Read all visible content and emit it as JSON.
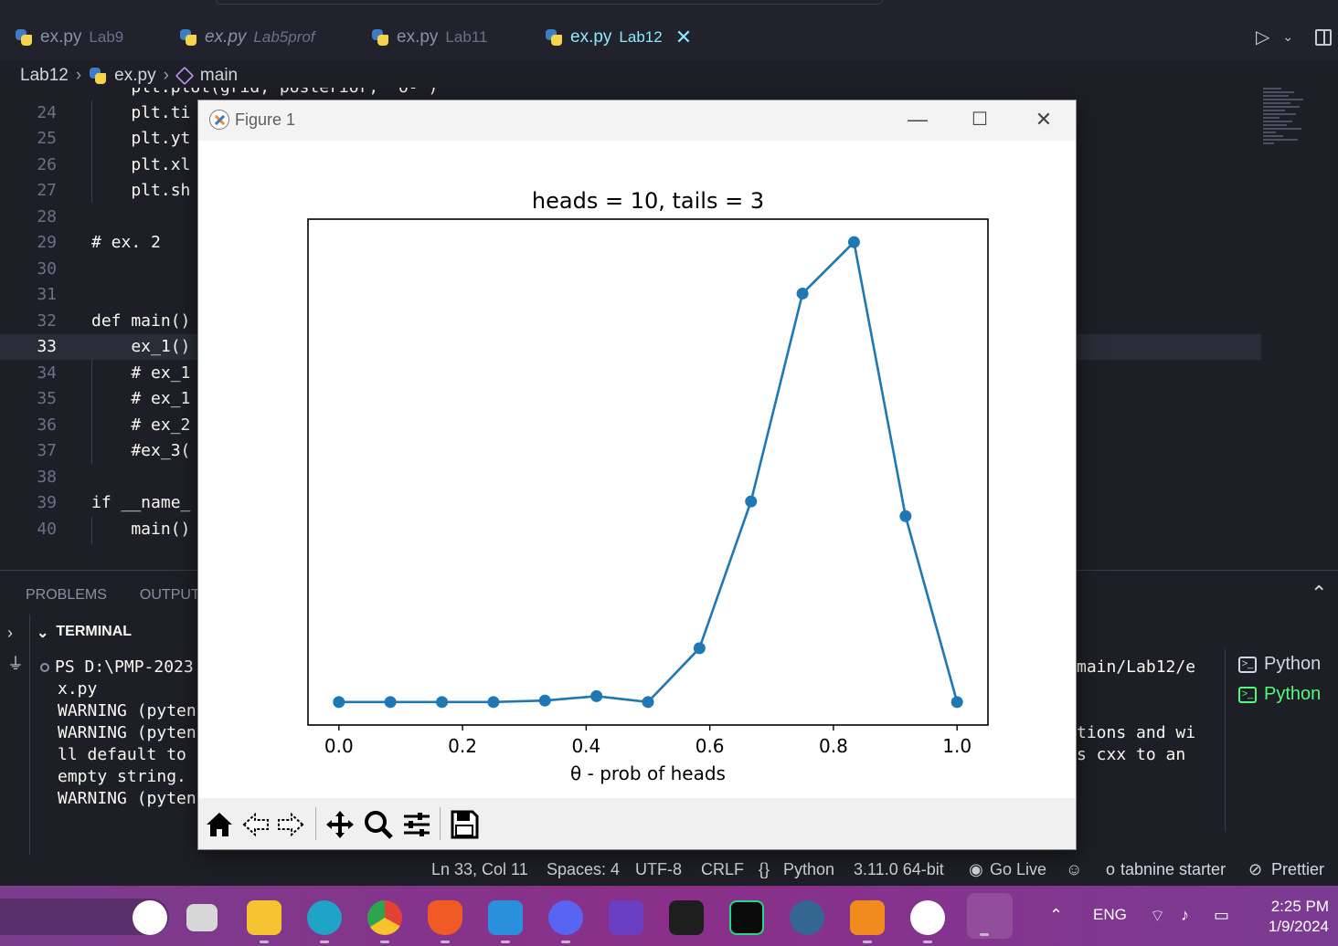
{
  "tabs": [
    {
      "name": "ex.py",
      "desc": "Lab9",
      "italic": false
    },
    {
      "name": "ex.py",
      "desc": "Lab5prof",
      "italic": true
    },
    {
      "name": "ex.py",
      "desc": "Lab11",
      "italic": false
    },
    {
      "name": "ex.py",
      "desc": "Lab12",
      "italic": false,
      "active": true
    }
  ],
  "breadcrumb": {
    "folder": "Lab12",
    "file": "ex.py",
    "symbol": "main"
  },
  "editor": {
    "lines": [
      {
        "n": "24",
        "code": "    plt.ti"
      },
      {
        "n": "25",
        "code": "    plt.yt"
      },
      {
        "n": "26",
        "code": "    plt.xl"
      },
      {
        "n": "27",
        "code": "    plt.sh"
      },
      {
        "n": "28",
        "code": ""
      },
      {
        "n": "29",
        "code": "# ex. 2"
      },
      {
        "n": "30",
        "code": ""
      },
      {
        "n": "31",
        "code": ""
      },
      {
        "n": "32",
        "code": "def main()"
      },
      {
        "n": "33",
        "code": "    ex_1()"
      },
      {
        "n": "34",
        "code": "    # ex_1"
      },
      {
        "n": "35",
        "code": "    # ex_1"
      },
      {
        "n": "36",
        "code": "    # ex_2"
      },
      {
        "n": "37",
        "code": "    #ex_3("
      },
      {
        "n": "38",
        "code": ""
      },
      {
        "n": "39",
        "code": "if __name_"
      },
      {
        "n": "40",
        "code": "    main()"
      }
    ],
    "partial_top": "    plt.plot(grid, posterior, 'o-')"
  },
  "panel": {
    "tabs": [
      "PROBLEMS",
      "OUTPUT"
    ],
    "terminal_header": "TERMINAL",
    "terminal_lines": [
      "PS D:\\PMP-2023",
      "x.py",
      "WARNING (pyten",
      "WARNING (pyten",
      "ll default to",
      "empty string.",
      "WARNING (pyten"
    ],
    "terminal_right": [
      "main/Lab12/e",
      "",
      "",
      "tions and wi",
      "s cxx to an"
    ],
    "terminal_list": [
      "Python",
      "Python"
    ]
  },
  "status": {
    "position": "Ln 33, Col 11",
    "spaces": "Spaces: 4",
    "encoding": "UTF-8",
    "eol": "CRLF",
    "language": "Python",
    "interpreter": "3.11.0 64-bit",
    "golive": "Go Live",
    "tabnine": "tabnine starter",
    "prettier": "Prettier"
  },
  "figure": {
    "window_title": "Figure 1"
  },
  "chart_data": {
    "type": "line",
    "title": "heads = 10, tails = 3",
    "xlabel": "θ - prob of heads",
    "ylabel": "",
    "x": [
      0.0,
      0.0833,
      0.1667,
      0.25,
      0.3333,
      0.4167,
      0.5,
      0.5833,
      0.6667,
      0.75,
      0.8333,
      0.9167,
      1.0
    ],
    "y": [
      0.0,
      0.0,
      0.0,
      0.0,
      0.003,
      0.012,
      0.0,
      0.11,
      0.41,
      0.835,
      0.94,
      0.38,
      0.0
    ],
    "xticks": [
      "0.0",
      "0.2",
      "0.4",
      "0.6",
      "0.8",
      "1.0"
    ],
    "xtick_values": [
      0.0,
      0.2,
      0.4,
      0.6,
      0.8,
      1.0
    ],
    "xlim": [
      -0.05,
      1.05
    ],
    "ylim": [
      -0.047,
      0.987
    ],
    "show_yticks": false,
    "grid": false,
    "color": "#1f77b4"
  },
  "taskbar": {
    "lang": "ENG",
    "time": "2:25 PM",
    "date": "1/9/2024"
  },
  "colors": {
    "accent_green": "#50fa7b",
    "accent_cyan": "#8be9fd",
    "keyword": "#ff79c6",
    "editor_bg": "#1e1f26"
  }
}
